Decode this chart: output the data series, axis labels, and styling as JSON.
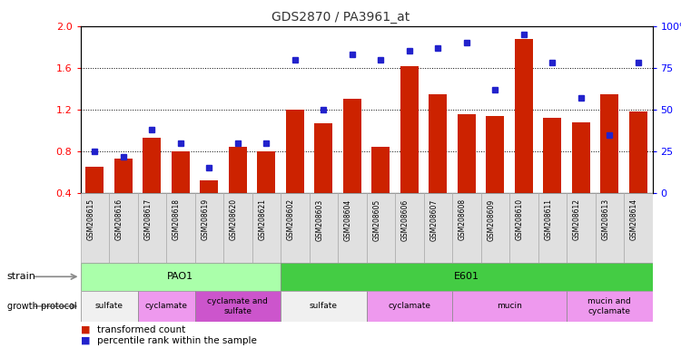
{
  "title": "GDS2870 / PA3961_at",
  "samples": [
    "GSM208615",
    "GSM208616",
    "GSM208617",
    "GSM208618",
    "GSM208619",
    "GSM208620",
    "GSM208621",
    "GSM208602",
    "GSM208603",
    "GSM208604",
    "GSM208605",
    "GSM208606",
    "GSM208607",
    "GSM208608",
    "GSM208609",
    "GSM208610",
    "GSM208611",
    "GSM208612",
    "GSM208613",
    "GSM208614"
  ],
  "transformed_count": [
    0.65,
    0.73,
    0.93,
    0.8,
    0.52,
    0.84,
    0.8,
    1.2,
    1.07,
    1.3,
    0.84,
    1.62,
    1.35,
    1.16,
    1.14,
    1.88,
    1.12,
    1.08,
    1.35,
    1.18
  ],
  "percentile_rank": [
    25,
    22,
    38,
    30,
    15,
    30,
    30,
    80,
    50,
    83,
    80,
    85,
    87,
    90,
    62,
    95,
    78,
    57,
    35,
    78
  ],
  "ylim_left": [
    0.4,
    2.0
  ],
  "ylim_right": [
    0,
    100
  ],
  "yticks_left": [
    0.4,
    0.8,
    1.2,
    1.6,
    2.0
  ],
  "yticks_right": [
    0,
    25,
    50,
    75,
    100
  ],
  "ytick_labels_right": [
    "0",
    "25",
    "50",
    "75",
    "100%"
  ],
  "bar_color": "#cc2200",
  "dot_color": "#2222cc",
  "strain_PAO1_range": [
    0,
    7
  ],
  "strain_E601_range": [
    7,
    20
  ],
  "strain_PAO1_color": "#aaffaa",
  "strain_E601_color": "#44cc44",
  "growth_groups": [
    {
      "label": "sulfate",
      "start": 0,
      "end": 2,
      "color": "#f0f0f0"
    },
    {
      "label": "cyclamate",
      "start": 2,
      "end": 4,
      "color": "#ee99ee"
    },
    {
      "label": "cyclamate and\nsulfate",
      "start": 4,
      "end": 7,
      "color": "#cc55cc"
    },
    {
      "label": "sulfate",
      "start": 7,
      "end": 10,
      "color": "#f0f0f0"
    },
    {
      "label": "cyclamate",
      "start": 10,
      "end": 13,
      "color": "#ee99ee"
    },
    {
      "label": "mucin",
      "start": 13,
      "end": 17,
      "color": "#ee99ee"
    },
    {
      "label": "mucin and\ncyclamate",
      "start": 17,
      "end": 20,
      "color": "#ee99ee"
    }
  ],
  "background_color": "#ffffff"
}
